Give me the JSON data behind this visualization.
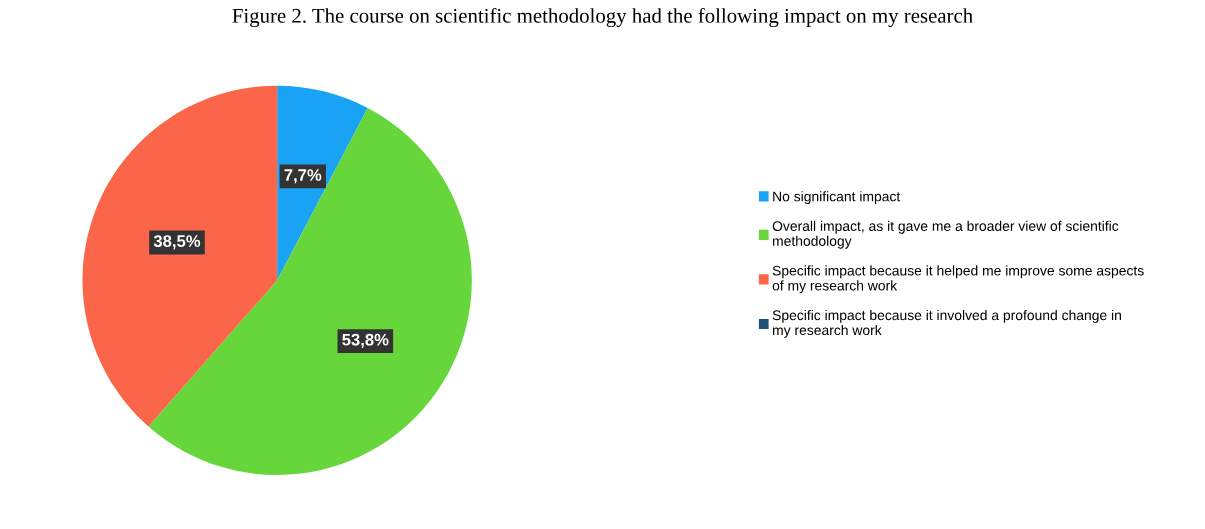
{
  "chart_data": {
    "type": "pie",
    "title": "Figure 2. The course on scientific methodology had the following impact on my research",
    "categories": [
      "No significant impact",
      "Overall impact, as it gave me a broader view of scientific methodology",
      "Specific impact because it helped me improve some aspects of my research work",
      "Specific impact because it involved a profound change in my research work"
    ],
    "values": [
      7.7,
      53.8,
      38.5,
      0
    ],
    "value_labels": [
      "7,7%",
      "53,8%",
      "38,5%",
      null
    ],
    "colors": [
      "#1aa3f5",
      "#66d63a",
      "#fb664a",
      "#1f4e79"
    ],
    "legend": "right"
  }
}
